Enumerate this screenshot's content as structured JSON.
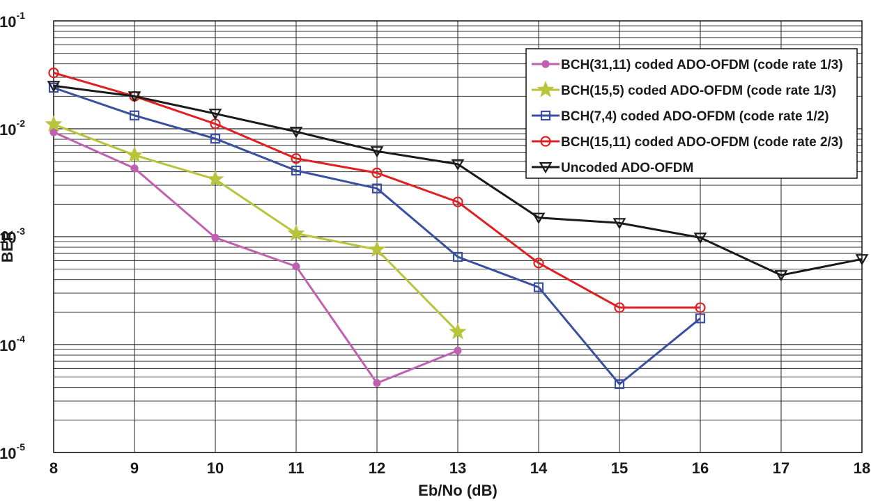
{
  "chart_data": {
    "type": "line",
    "xlabel": "Eb/No (dB)",
    "ylabel": "BER",
    "yscale": "log",
    "xlim": [
      8,
      18
    ],
    "ylim": [
      1e-05,
      0.1
    ],
    "x_ticks": [
      "8",
      "9",
      "10",
      "11",
      "12",
      "13",
      "14",
      "15",
      "16",
      "17",
      "18"
    ],
    "y_ticks": [
      {
        "base": "10",
        "exp": "-1",
        "value": 0.1
      },
      {
        "base": "10",
        "exp": "-2",
        "value": 0.01
      },
      {
        "base": "10",
        "exp": "-3",
        "value": 0.001
      },
      {
        "base": "10",
        "exp": "-4",
        "value": 0.0001
      },
      {
        "base": "10",
        "exp": "-5",
        "value": 1e-05
      }
    ],
    "grid": true,
    "legend_position": "top-right",
    "series": [
      {
        "name": "BCH(31,11) coded ADO-OFDM (code rate 1/3)",
        "color": "#c060b0",
        "marker": "dot",
        "x": [
          8,
          9,
          10,
          11,
          12,
          13
        ],
        "y": [
          0.0093,
          0.0043,
          0.00098,
          0.00053,
          4.4e-05,
          8.8e-05
        ]
      },
      {
        "name": "BCH(15,5) coded ADO-OFDM (code rate 1/3)",
        "color": "#b8c43a",
        "marker": "star",
        "x": [
          8,
          9,
          10,
          11,
          12,
          13
        ],
        "y": [
          0.011,
          0.0057,
          0.0034,
          0.00107,
          0.00076,
          0.000131
        ]
      },
      {
        "name": "BCH(7,4) coded ADO-OFDM (code rate 1/2)",
        "color": "#3a4fa0",
        "marker": "square",
        "x": [
          8,
          9,
          10,
          11,
          12,
          13,
          14,
          15,
          16
        ],
        "y": [
          0.024,
          0.0133,
          0.0081,
          0.0041,
          0.0028,
          0.00065,
          0.00034,
          4.3e-05,
          0.000175
        ]
      },
      {
        "name": "BCH(15,11) coded ADO-OFDM (code rate 2/3)",
        "color": "#e02020",
        "marker": "circle",
        "x": [
          8,
          9,
          10,
          11,
          12,
          13,
          14,
          15,
          16
        ],
        "y": [
          0.033,
          0.02,
          0.0111,
          0.0053,
          0.0039,
          0.0021,
          0.00057,
          0.00022,
          0.00022
        ]
      },
      {
        "name": "Uncoded ADO-OFDM",
        "color": "#1a1a1a",
        "marker": "triangle-down",
        "x": [
          8,
          9,
          10,
          11,
          12,
          13,
          14,
          15,
          16,
          17,
          18
        ],
        "y": [
          0.025,
          0.02,
          0.0138,
          0.0094,
          0.0062,
          0.0047,
          0.0015,
          0.00134,
          0.00098,
          0.00044,
          0.00062
        ]
      }
    ]
  }
}
